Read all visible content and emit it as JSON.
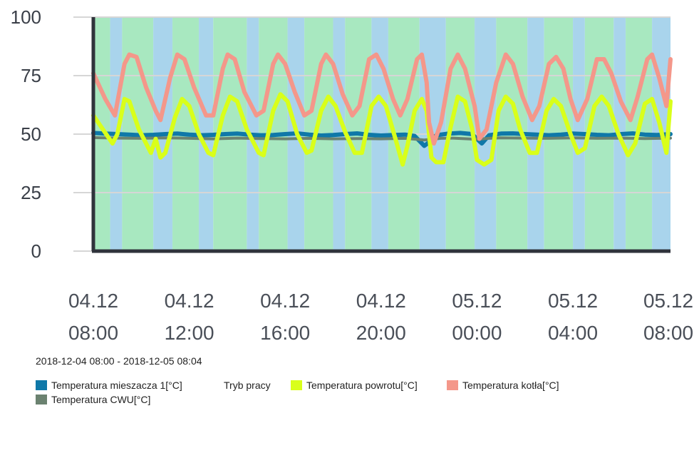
{
  "chart_data": {
    "type": "line",
    "ylim": [
      0,
      100
    ],
    "yticks": [
      "100",
      "75",
      "50",
      "25",
      "0"
    ],
    "ytick_values": [
      100,
      75,
      50,
      25,
      0
    ],
    "xlim_hours": [
      0,
      24.07
    ],
    "xticks": [
      {
        "date": "04.12",
        "time": "08:00",
        "h": 0
      },
      {
        "date": "04.12",
        "time": "12:00",
        "h": 4
      },
      {
        "date": "04.12",
        "time": "16:00",
        "h": 8
      },
      {
        "date": "04.12",
        "time": "20:00",
        "h": 12
      },
      {
        "date": "05.12",
        "time": "00:00",
        "h": 16
      },
      {
        "date": "05.12",
        "time": "04:00",
        "h": 20
      },
      {
        "date": "05.12",
        "time": "08:00",
        "h": 24
      }
    ],
    "grid": true,
    "range_label": "2018-12-04 08:00 - 2018-12-05 08:04",
    "colors": {
      "mieszacz": "#0f78a8",
      "cwu": "#6b8270",
      "powrot": "#d9ff1a",
      "kociol": "#f4978a",
      "mode_green": "#a8e8c0",
      "mode_blue": "#a9d4ec",
      "axis": "#2f333b"
    },
    "tryb_pracy_bands": [
      {
        "from": 0.0,
        "to": 0.7,
        "mode": "green"
      },
      {
        "from": 0.7,
        "to": 1.2,
        "mode": "blue"
      },
      {
        "from": 1.2,
        "to": 2.5,
        "mode": "green"
      },
      {
        "from": 2.5,
        "to": 3.3,
        "mode": "blue"
      },
      {
        "from": 3.3,
        "to": 4.4,
        "mode": "green"
      },
      {
        "from": 4.4,
        "to": 5.0,
        "mode": "blue"
      },
      {
        "from": 5.0,
        "to": 6.4,
        "mode": "green"
      },
      {
        "from": 6.4,
        "to": 6.9,
        "mode": "blue"
      },
      {
        "from": 6.9,
        "to": 8.1,
        "mode": "green"
      },
      {
        "from": 8.1,
        "to": 8.8,
        "mode": "blue"
      },
      {
        "from": 8.8,
        "to": 10.0,
        "mode": "green"
      },
      {
        "from": 10.0,
        "to": 10.5,
        "mode": "blue"
      },
      {
        "from": 10.5,
        "to": 11.6,
        "mode": "green"
      },
      {
        "from": 11.6,
        "to": 12.3,
        "mode": "blue"
      },
      {
        "from": 12.3,
        "to": 13.6,
        "mode": "green"
      },
      {
        "from": 13.6,
        "to": 14.7,
        "mode": "blue"
      },
      {
        "from": 14.7,
        "to": 15.9,
        "mode": "green"
      },
      {
        "from": 15.9,
        "to": 16.8,
        "mode": "blue"
      },
      {
        "from": 16.8,
        "to": 18.1,
        "mode": "green"
      },
      {
        "from": 18.1,
        "to": 18.8,
        "mode": "blue"
      },
      {
        "from": 18.8,
        "to": 20.0,
        "mode": "green"
      },
      {
        "from": 20.0,
        "to": 20.5,
        "mode": "blue"
      },
      {
        "from": 20.5,
        "to": 21.7,
        "mode": "green"
      },
      {
        "from": 21.7,
        "to": 22.2,
        "mode": "blue"
      },
      {
        "from": 22.2,
        "to": 23.3,
        "mode": "green"
      },
      {
        "from": 23.3,
        "to": 24.07,
        "mode": "blue"
      }
    ],
    "series": [
      {
        "name": "Temperatura mieszacza 1[°C]",
        "key": "mieszacz",
        "points": [
          [
            0,
            50.5
          ],
          [
            0.5,
            50.2
          ],
          [
            1.0,
            50.0
          ],
          [
            1.5,
            49.8
          ],
          [
            2.0,
            49.5
          ],
          [
            2.5,
            49.7
          ],
          [
            3.0,
            50.0
          ],
          [
            3.5,
            50.2
          ],
          [
            4.0,
            49.8
          ],
          [
            4.5,
            49.5
          ],
          [
            5.0,
            49.7
          ],
          [
            5.5,
            50.0
          ],
          [
            6.0,
            50.2
          ],
          [
            6.5,
            49.8
          ],
          [
            7.0,
            49.5
          ],
          [
            7.5,
            49.6
          ],
          [
            8.0,
            50.0
          ],
          [
            8.5,
            50.3
          ],
          [
            9.0,
            49.8
          ],
          [
            9.5,
            49.4
          ],
          [
            10.0,
            49.6
          ],
          [
            10.5,
            50.0
          ],
          [
            11.0,
            50.3
          ],
          [
            11.5,
            49.7
          ],
          [
            12.0,
            49.4
          ],
          [
            12.5,
            49.6
          ],
          [
            13.0,
            49.8
          ],
          [
            13.4,
            49.2
          ],
          [
            13.8,
            45.0
          ],
          [
            14.0,
            46.5
          ],
          [
            14.3,
            49.5
          ],
          [
            14.8,
            50.2
          ],
          [
            15.3,
            50.5
          ],
          [
            15.8,
            50.0
          ],
          [
            16.0,
            48.0
          ],
          [
            16.2,
            46.0
          ],
          [
            16.5,
            49.5
          ],
          [
            17.0,
            50.2
          ],
          [
            17.5,
            50.3
          ],
          [
            18.0,
            50.0
          ],
          [
            18.5,
            49.8
          ],
          [
            19.0,
            49.5
          ],
          [
            19.5,
            49.8
          ],
          [
            20.0,
            50.2
          ],
          [
            20.5,
            50.0
          ],
          [
            21.0,
            49.7
          ],
          [
            21.5,
            49.5
          ],
          [
            22.0,
            50.0
          ],
          [
            22.5,
            50.3
          ],
          [
            23.0,
            49.8
          ],
          [
            23.5,
            49.6
          ],
          [
            24.07,
            50.0
          ]
        ]
      },
      {
        "name": "Temperatura CWU[°C]",
        "key": "cwu",
        "points": [
          [
            0,
            48.5
          ],
          [
            1,
            48.3
          ],
          [
            2,
            48.2
          ],
          [
            3,
            48.4
          ],
          [
            4,
            48.2
          ],
          [
            5,
            48.0
          ],
          [
            6,
            48.3
          ],
          [
            7,
            48.1
          ],
          [
            8,
            48.0
          ],
          [
            9,
            48.2
          ],
          [
            10,
            48.0
          ],
          [
            11,
            48.1
          ],
          [
            12,
            48.0
          ],
          [
            13,
            48.2
          ],
          [
            13.8,
            47.5
          ],
          [
            14.5,
            48.2
          ],
          [
            15,
            48.3
          ],
          [
            16,
            47.8
          ],
          [
            16.5,
            48.2
          ],
          [
            17,
            48.4
          ],
          [
            18,
            48.3
          ],
          [
            19,
            48.2
          ],
          [
            20,
            48.4
          ],
          [
            21,
            48.2
          ],
          [
            22,
            48.3
          ],
          [
            23,
            48.1
          ],
          [
            24.07,
            48.3
          ]
        ]
      },
      {
        "name": "Temperatura powrotu[°C]",
        "key": "powrot",
        "points": [
          [
            0,
            58
          ],
          [
            0.4,
            52
          ],
          [
            0.8,
            46
          ],
          [
            1.0,
            50
          ],
          [
            1.3,
            65
          ],
          [
            1.5,
            64
          ],
          [
            1.9,
            52
          ],
          [
            2.4,
            42
          ],
          [
            2.6,
            48
          ],
          [
            2.8,
            40
          ],
          [
            3.0,
            42
          ],
          [
            3.4,
            57
          ],
          [
            3.7,
            65
          ],
          [
            4.0,
            62
          ],
          [
            4.4,
            50
          ],
          [
            4.8,
            42
          ],
          [
            5.0,
            41
          ],
          [
            5.4,
            58
          ],
          [
            5.7,
            66
          ],
          [
            6.0,
            64
          ],
          [
            6.4,
            52
          ],
          [
            6.9,
            42
          ],
          [
            7.1,
            41
          ],
          [
            7.5,
            60
          ],
          [
            7.8,
            67
          ],
          [
            8.1,
            64
          ],
          [
            8.5,
            50
          ],
          [
            8.9,
            42
          ],
          [
            9.1,
            43
          ],
          [
            9.5,
            60
          ],
          [
            9.8,
            66
          ],
          [
            10.1,
            62
          ],
          [
            10.5,
            51
          ],
          [
            10.9,
            42
          ],
          [
            11.2,
            42
          ],
          [
            11.6,
            62
          ],
          [
            11.9,
            66
          ],
          [
            12.2,
            62
          ],
          [
            12.6,
            48
          ],
          [
            12.9,
            37
          ],
          [
            13.1,
            45
          ],
          [
            13.4,
            60
          ],
          [
            13.7,
            65
          ],
          [
            13.9,
            60
          ],
          [
            14.1,
            40
          ],
          [
            14.3,
            38
          ],
          [
            14.6,
            38
          ],
          [
            14.9,
            53
          ],
          [
            15.2,
            66
          ],
          [
            15.5,
            64
          ],
          [
            15.8,
            52
          ],
          [
            16.0,
            39
          ],
          [
            16.3,
            37
          ],
          [
            16.6,
            39
          ],
          [
            16.9,
            60
          ],
          [
            17.2,
            66
          ],
          [
            17.5,
            63
          ],
          [
            17.8,
            52
          ],
          [
            18.2,
            42
          ],
          [
            18.5,
            42
          ],
          [
            18.9,
            60
          ],
          [
            19.2,
            65
          ],
          [
            19.5,
            62
          ],
          [
            19.9,
            50
          ],
          [
            20.2,
            42
          ],
          [
            20.5,
            44
          ],
          [
            20.9,
            62
          ],
          [
            21.2,
            66
          ],
          [
            21.5,
            62
          ],
          [
            21.9,
            50
          ],
          [
            22.3,
            41
          ],
          [
            22.6,
            46
          ],
          [
            23.0,
            63
          ],
          [
            23.3,
            65
          ],
          [
            23.6,
            55
          ],
          [
            23.9,
            42
          ],
          [
            24.07,
            64
          ]
        ]
      },
      {
        "name": "Temperatura kotła[°C]",
        "key": "kociol",
        "points": [
          [
            0,
            76
          ],
          [
            0.5,
            65
          ],
          [
            0.9,
            58
          ],
          [
            1.3,
            80
          ],
          [
            1.5,
            84
          ],
          [
            1.8,
            83
          ],
          [
            2.2,
            70
          ],
          [
            2.6,
            60
          ],
          [
            2.8,
            56
          ],
          [
            3.2,
            74
          ],
          [
            3.5,
            84
          ],
          [
            3.8,
            82
          ],
          [
            4.2,
            70
          ],
          [
            4.7,
            58
          ],
          [
            5.0,
            58
          ],
          [
            5.4,
            78
          ],
          [
            5.6,
            84
          ],
          [
            5.9,
            82
          ],
          [
            6.3,
            68
          ],
          [
            6.8,
            58
          ],
          [
            7.1,
            60
          ],
          [
            7.5,
            80
          ],
          [
            7.7,
            84
          ],
          [
            8.0,
            80
          ],
          [
            8.4,
            68
          ],
          [
            8.8,
            58
          ],
          [
            9.1,
            60
          ],
          [
            9.5,
            80
          ],
          [
            9.7,
            84
          ],
          [
            10.0,
            80
          ],
          [
            10.4,
            67
          ],
          [
            10.8,
            58
          ],
          [
            11.1,
            62
          ],
          [
            11.5,
            82
          ],
          [
            11.8,
            84
          ],
          [
            12.1,
            78
          ],
          [
            12.5,
            65
          ],
          [
            12.8,
            58
          ],
          [
            13.1,
            65
          ],
          [
            13.5,
            82
          ],
          [
            13.7,
            84
          ],
          [
            13.9,
            72
          ],
          [
            14.0,
            55
          ],
          [
            14.2,
            46
          ],
          [
            14.5,
            55
          ],
          [
            14.9,
            78
          ],
          [
            15.2,
            84
          ],
          [
            15.5,
            78
          ],
          [
            15.9,
            62
          ],
          [
            16.1,
            48
          ],
          [
            16.4,
            52
          ],
          [
            16.8,
            72
          ],
          [
            17.2,
            84
          ],
          [
            17.5,
            80
          ],
          [
            17.9,
            66
          ],
          [
            18.3,
            56
          ],
          [
            18.6,
            62
          ],
          [
            19.0,
            80
          ],
          [
            19.3,
            83
          ],
          [
            19.6,
            78
          ],
          [
            19.9,
            65
          ],
          [
            20.2,
            56
          ],
          [
            20.6,
            65
          ],
          [
            21.0,
            82
          ],
          [
            21.3,
            82
          ],
          [
            21.6,
            76
          ],
          [
            22.0,
            64
          ],
          [
            22.4,
            56
          ],
          [
            22.7,
            66
          ],
          [
            23.1,
            82
          ],
          [
            23.3,
            84
          ],
          [
            23.6,
            74
          ],
          [
            23.9,
            62
          ],
          [
            24.07,
            82
          ]
        ]
      }
    ],
    "legend": [
      {
        "label": "Temperatura mieszacza 1[°C]",
        "swatch": "#0f78a8"
      },
      {
        "label": "Tryb pracy",
        "swatch": ""
      },
      {
        "label": "Temperatura powrotu[°C]",
        "swatch": "#d9ff1a"
      },
      {
        "label": "Temperatura kotła[°C]",
        "swatch": "#f4978a"
      },
      {
        "label": "Temperatura CWU[°C]",
        "swatch": "#6b8270"
      }
    ]
  }
}
